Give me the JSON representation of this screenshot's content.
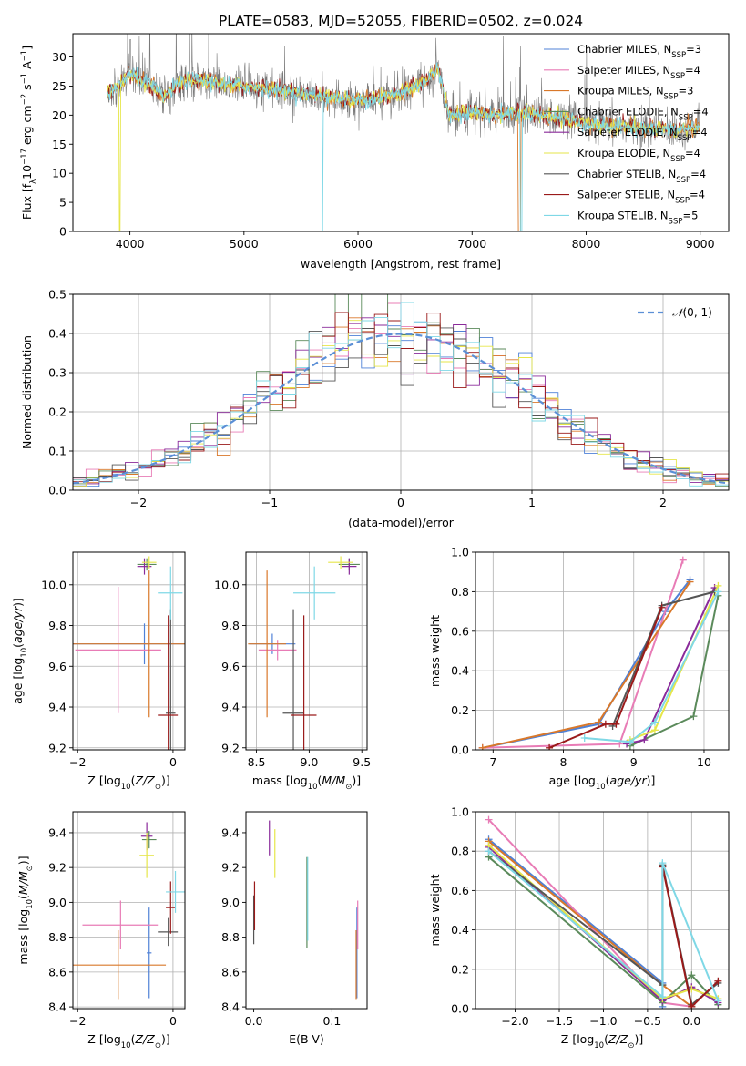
{
  "figure_title": "PLATE=0583, MJD=52055, FIBERID=0502, z=0.024",
  "models": [
    {
      "name": "Chabrier MILES",
      "nssp": "3",
      "color": "#4f81d7"
    },
    {
      "name": "Salpeter MILES",
      "nssp": "4",
      "color": "#e87cb6"
    },
    {
      "name": "Kroupa MILES",
      "nssp": "3",
      "color": "#d9782a"
    },
    {
      "name": "Chabrier ELODIE",
      "nssp": "4",
      "color": "#5b8a5b"
    },
    {
      "name": "Salpeter ELODIE",
      "nssp": "4",
      "color": "#8a2a9a"
    },
    {
      "name": "Kroupa ELODIE",
      "nssp": "4",
      "color": "#e6e64a"
    },
    {
      "name": "Chabrier STELIB",
      "nssp": "4",
      "color": "#555555"
    },
    {
      "name": "Salpeter STELIB",
      "nssp": "4",
      "color": "#9a1a1a"
    },
    {
      "name": "Kroupa STELIB",
      "nssp": "5",
      "color": "#7fd8e6"
    }
  ],
  "chart_data": [
    {
      "id": "spectrum",
      "type": "line",
      "xlabel": "wavelength [Angstrom, rest frame]",
      "ylabel": "Flux [f_λ 10^-17 erg cm^-2 s^-1 A^-1]",
      "xlim": [
        3500,
        9250
      ],
      "ylim": [
        0,
        34
      ],
      "xticks": [
        4000,
        5000,
        6000,
        7000,
        8000,
        9000
      ],
      "yticks": [
        0,
        5,
        10,
        15,
        20,
        25,
        30
      ],
      "grid": false,
      "legend": "upper right",
      "continuum": {
        "x": [
          3800,
          3900,
          4000,
          4100,
          4200,
          4300,
          4400,
          4500,
          4600,
          4800,
          5000,
          5200,
          5400,
          5600,
          5800,
          6000,
          6200,
          6400,
          6500,
          6600,
          6700,
          6800,
          7000,
          7200,
          7400,
          7600,
          7800,
          8000,
          8200,
          8400,
          8600,
          8800,
          9000
        ],
        "y": [
          24,
          25,
          27,
          26,
          25,
          23,
          25,
          26,
          26,
          25.5,
          25,
          24.5,
          24,
          23.5,
          23,
          22.5,
          23,
          24,
          25,
          26,
          28,
          20,
          20.5,
          20,
          20.5,
          20,
          19.5,
          18.5,
          18,
          18,
          17.5,
          17.5,
          18
        ]
      }
    },
    {
      "id": "residuals",
      "type": "step",
      "xlabel": "(data-model)/error",
      "ylabel": "Normed distribution",
      "xlim": [
        -2.5,
        2.5
      ],
      "ylim": [
        0,
        0.5
      ],
      "xticks": [
        -2,
        -1,
        0,
        1,
        2
      ],
      "yticks": [
        0.0,
        0.1,
        0.2,
        0.3,
        0.4,
        0.5
      ],
      "grid": true,
      "legend": "upper right",
      "reference": {
        "name": "N(0,1)",
        "mu": 0,
        "sigma": 1,
        "color": "#5b8fd6"
      },
      "bin_width": 0.1
    },
    {
      "id": "age_vs_Z",
      "type": "errorbar",
      "xlabel": "Z [log10(Z/Z☉)]",
      "ylabel": "age [log10(age/yr)]",
      "xlim": [
        -2.1,
        0.25
      ],
      "ylim": [
        9.19,
        10.16
      ],
      "xticks": [
        -2,
        0
      ],
      "yticks": [
        9.2,
        9.4,
        9.6,
        9.8,
        10.0
      ],
      "grid": true,
      "points": [
        {
          "m": 0,
          "x": -0.6,
          "y": 9.71,
          "xerr": 1.5,
          "yerr": 0.1
        },
        {
          "m": 1,
          "x": -1.15,
          "y": 9.68,
          "xerr": 0.9,
          "yerr": 0.31
        },
        {
          "m": 2,
          "x": -0.5,
          "y": 9.71,
          "xerr": 1.6,
          "yerr": 0.36
        },
        {
          "m": 3,
          "x": -0.55,
          "y": 10.1,
          "xerr": 0.2,
          "yerr": 0.03
        },
        {
          "m": 4,
          "x": -0.6,
          "y": 10.09,
          "xerr": 0.15,
          "yerr": 0.04
        },
        {
          "m": 5,
          "x": -0.5,
          "y": 10.11,
          "xerr": 0.15,
          "yerr": 0.03
        },
        {
          "m": 6,
          "x": -0.05,
          "y": 9.37,
          "xerr": 0.1,
          "yerr": 0.51
        },
        {
          "m": 7,
          "x": -0.1,
          "y": 9.36,
          "xerr": 0.2,
          "yerr": 0.49
        },
        {
          "m": 8,
          "x": -0.05,
          "y": 9.96,
          "xerr": 0.25,
          "yerr": 0.13
        }
      ]
    },
    {
      "id": "age_vs_mass",
      "type": "errorbar",
      "xlabel": "mass [log10(M/M☉)]",
      "ylabel": "",
      "xlim": [
        8.4,
        9.55
      ],
      "ylim": [
        9.19,
        10.16
      ],
      "xticks": [
        8.5,
        9.0,
        9.5
      ],
      "yticks": [
        9.2,
        9.4,
        9.6,
        9.8,
        10.0
      ],
      "grid": true,
      "points": [
        {
          "m": 0,
          "x": 8.65,
          "y": 9.71,
          "xerr": 0.22,
          "yerr": 0.05
        },
        {
          "m": 1,
          "x": 8.7,
          "y": 9.68,
          "xerr": 0.18,
          "yerr": 0.05
        },
        {
          "m": 2,
          "x": 8.6,
          "y": 9.71,
          "xerr": 0.18,
          "yerr": 0.36
        },
        {
          "m": 3,
          "x": 9.38,
          "y": 10.1,
          "xerr": 0.1,
          "yerr": 0.03
        },
        {
          "m": 4,
          "x": 9.38,
          "y": 10.09,
          "xerr": 0.07,
          "yerr": 0.04
        },
        {
          "m": 5,
          "x": 9.3,
          "y": 10.11,
          "xerr": 0.12,
          "yerr": 0.03
        },
        {
          "m": 6,
          "x": 8.85,
          "y": 9.37,
          "xerr": 0.1,
          "yerr": 0.51
        },
        {
          "m": 7,
          "x": 8.95,
          "y": 9.36,
          "xerr": 0.12,
          "yerr": 0.49
        },
        {
          "m": 8,
          "x": 9.05,
          "y": 9.96,
          "xerr": 0.2,
          "yerr": 0.13
        }
      ]
    },
    {
      "id": "weight_vs_age",
      "type": "line",
      "xlabel": "age [log10(age/yr)]",
      "ylabel": "mass weight",
      "xlim": [
        6.75,
        10.35
      ],
      "ylim": [
        0,
        1.0
      ],
      "xticks": [
        7,
        8,
        9,
        10
      ],
      "yticks": [
        0.0,
        0.2,
        0.4,
        0.6,
        0.8,
        1.0
      ],
      "grid": true,
      "series": [
        {
          "m": 0,
          "x": [
            6.85,
            8.5,
            9.45,
            9.8
          ],
          "y": [
            0.01,
            0.13,
            0.7,
            0.86
          ]
        },
        {
          "m": 1,
          "x": [
            6.85,
            8.8,
            9.7
          ],
          "y": [
            0.01,
            0.03,
            0.96
          ]
        },
        {
          "m": 2,
          "x": [
            6.85,
            8.5,
            9.8
          ],
          "y": [
            0.01,
            0.14,
            0.85
          ]
        },
        {
          "m": 3,
          "x": [
            8.95,
            9.85,
            10.2
          ],
          "y": [
            0.02,
            0.17,
            0.78
          ]
        },
        {
          "m": 4,
          "x": [
            8.9,
            9.15,
            10.15
          ],
          "y": [
            0.03,
            0.05,
            0.82
          ]
        },
        {
          "m": 5,
          "x": [
            8.95,
            9.3,
            10.2
          ],
          "y": [
            0.05,
            0.1,
            0.83
          ]
        },
        {
          "m": 6,
          "x": [
            8.7,
            9.4,
            10.15
          ],
          "y": [
            0.12,
            0.73,
            0.8
          ]
        },
        {
          "m": 7,
          "x": [
            7.8,
            8.6,
            8.75,
            9.4
          ],
          "y": [
            0.01,
            0.13,
            0.13,
            0.72
          ]
        },
        {
          "m": 8,
          "x": [
            8.3,
            8.95,
            9.3,
            10.2
          ],
          "y": [
            0.06,
            0.04,
            0.14,
            0.8
          ]
        }
      ]
    },
    {
      "id": "mass_vs_Z",
      "type": "errorbar",
      "xlabel": "Z [log10(Z/Z☉)]",
      "ylabel": "mass [log10(M/M☉)]",
      "xlim": [
        -2.1,
        0.25
      ],
      "ylim": [
        8.39,
        9.52
      ],
      "xticks": [
        -2,
        0
      ],
      "yticks": [
        8.4,
        8.6,
        8.8,
        9.0,
        9.2,
        9.4
      ],
      "grid": true,
      "points": [
        {
          "m": 0,
          "x": -0.5,
          "y": 8.71,
          "xerr": 0.05,
          "yerr": 0.26
        },
        {
          "m": 1,
          "x": -1.1,
          "y": 8.87,
          "xerr": 0.8,
          "yerr": 0.14
        },
        {
          "m": 2,
          "x": -1.15,
          "y": 8.64,
          "xerr": 1.0,
          "yerr": 0.2
        },
        {
          "m": 3,
          "x": -0.5,
          "y": 9.36,
          "xerr": 0.15,
          "yerr": 0.05
        },
        {
          "m": 4,
          "x": -0.55,
          "y": 9.38,
          "xerr": 0.12,
          "yerr": 0.08
        },
        {
          "m": 5,
          "x": -0.55,
          "y": 9.27,
          "xerr": 0.15,
          "yerr": 0.13
        },
        {
          "m": 6,
          "x": -0.1,
          "y": 8.83,
          "xerr": 0.2,
          "yerr": 0.08
        },
        {
          "m": 7,
          "x": -0.05,
          "y": 8.97,
          "xerr": 0.1,
          "yerr": 0.15
        },
        {
          "m": 8,
          "x": 0.05,
          "y": 9.06,
          "xerr": 0.2,
          "yerr": 0.12
        }
      ]
    },
    {
      "id": "mass_vs_ebv",
      "type": "errorbar",
      "xlabel": "E(B-V)",
      "ylabel": "",
      "xlim": [
        -0.01,
        0.145
      ],
      "ylim": [
        8.39,
        9.52
      ],
      "xticks": [
        0.0,
        0.1
      ],
      "yticks": [
        8.4,
        8.6,
        8.8,
        9.0,
        9.2,
        9.4
      ],
      "grid": false,
      "points": [
        {
          "m": 0,
          "x": 0.132,
          "y": 8.71,
          "xerr": 0,
          "yerr": 0.26
        },
        {
          "m": 1,
          "x": 0.133,
          "y": 8.87,
          "xerr": 0,
          "yerr": 0.14
        },
        {
          "m": 2,
          "x": 0.131,
          "y": 8.64,
          "xerr": 0,
          "yerr": 0.2
        },
        {
          "m": 3,
          "x": 0.068,
          "y": 9.0,
          "xerr": 0,
          "yerr": 0.26
        },
        {
          "m": 4,
          "x": 0.02,
          "y": 9.37,
          "xerr": 0,
          "yerr": 0.1
        },
        {
          "m": 5,
          "x": 0.027,
          "y": 9.28,
          "xerr": 0,
          "yerr": 0.14
        },
        {
          "m": 6,
          "x": 0.0,
          "y": 8.9,
          "xerr": 0,
          "yerr": 0.14
        },
        {
          "m": 7,
          "x": 0.001,
          "y": 8.98,
          "xerr": 0,
          "yerr": 0.14
        },
        {
          "m": 8,
          "x": 0.069,
          "y": 9.02,
          "xerr": 0,
          "yerr": 0.24
        }
      ]
    },
    {
      "id": "weight_vs_Z",
      "type": "line",
      "xlabel": "Z [log10(Z/Z☉)]",
      "ylabel": "mass weight",
      "xlim": [
        -2.45,
        0.42
      ],
      "ylim": [
        0,
        1.0
      ],
      "xticks": [
        -2.0,
        -1.5,
        -1.0,
        -0.5,
        0.0
      ],
      "yticks": [
        0.0,
        0.2,
        0.4,
        0.6,
        0.8,
        1.0
      ],
      "grid": true,
      "series": [
        {
          "m": 0,
          "x": [
            -2.3,
            -0.33,
            -0.33
          ],
          "y": [
            0.86,
            0.13,
            0.01
          ]
        },
        {
          "m": 1,
          "x": [
            -2.3,
            -0.33,
            0.0
          ],
          "y": [
            0.96,
            0.03,
            0.01
          ]
        },
        {
          "m": 2,
          "x": [
            -2.3,
            -0.33,
            0.0
          ],
          "y": [
            0.85,
            0.12,
            0.01
          ]
        },
        {
          "m": 3,
          "x": [
            -2.3,
            -0.33,
            0.0,
            0.3
          ],
          "y": [
            0.77,
            0.03,
            0.17,
            0.02
          ]
        },
        {
          "m": 4,
          "x": [
            -2.3,
            -0.33,
            0.0,
            0.3
          ],
          "y": [
            0.82,
            0.04,
            0.11,
            0.03
          ]
        },
        {
          "m": 5,
          "x": [
            -2.3,
            -0.33,
            0.0,
            0.3
          ],
          "y": [
            0.83,
            0.05,
            0.1,
            0.05
          ]
        },
        {
          "m": 6,
          "x": [
            -2.3,
            -0.33,
            -0.33,
            0.0,
            0.3
          ],
          "y": [
            0.8,
            0.12,
            0.73,
            0.02,
            0.13
          ]
        },
        {
          "m": 7,
          "x": [
            -0.33,
            0.0,
            0.3
          ],
          "y": [
            0.72,
            0.01,
            0.14
          ]
        },
        {
          "m": 8,
          "x": [
            -2.3,
            -0.33,
            -0.33,
            0.3
          ],
          "y": [
            0.8,
            0.06,
            0.74,
            0.04
          ]
        }
      ]
    }
  ]
}
